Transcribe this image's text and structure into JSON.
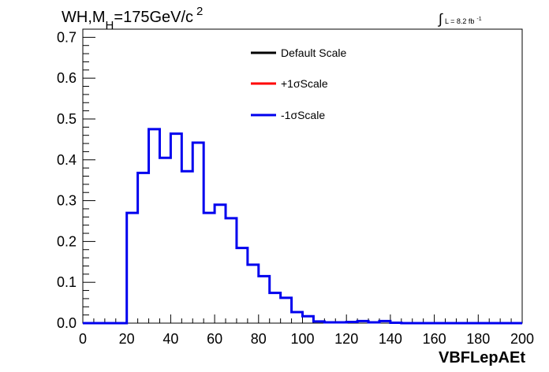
{
  "chart_data": {
    "type": "line",
    "title_parts": {
      "main": "WH,M",
      "sub": "H",
      "mid": "=175GeV/c",
      "sup": "2"
    },
    "lumi_parts": {
      "integral": "∫",
      "text": "L = 8.2 fb",
      "sup": "-1"
    },
    "xlabel": "VBFLepAEt",
    "ylabel": "",
    "xlim": [
      0,
      200
    ],
    "ylim": [
      0,
      0.72
    ],
    "x_ticks": [
      "0",
      "20",
      "40",
      "60",
      "80",
      "100",
      "120",
      "140",
      "160",
      "180",
      "200"
    ],
    "y_ticks": [
      "0.0",
      "0.1",
      "0.2",
      "0.3",
      "0.4",
      "0.5",
      "0.6",
      "0.7"
    ],
    "bin_width": 5,
    "bin_edges_start": 0,
    "legend": [
      {
        "label": "Default Scale",
        "color": "#000000"
      },
      {
        "label": "+1σScale",
        "color": "#ff0000"
      },
      {
        "label": "-1σScale",
        "color": "#0000ee"
      }
    ],
    "series": [
      {
        "name": "-1σScale",
        "color": "#0000ee",
        "values": [
          0,
          0,
          0,
          0,
          0.27,
          0.368,
          0.475,
          0.405,
          0.464,
          0.372,
          0.442,
          0.27,
          0.29,
          0.257,
          0.184,
          0.143,
          0.115,
          0.074,
          0.062,
          0.027,
          0.017,
          0.004,
          0.002,
          0.002,
          0.003,
          0.005,
          0.002,
          0.005,
          0.001,
          0,
          0,
          0,
          0,
          0,
          0,
          0,
          0,
          0,
          0,
          0
        ]
      }
    ]
  }
}
